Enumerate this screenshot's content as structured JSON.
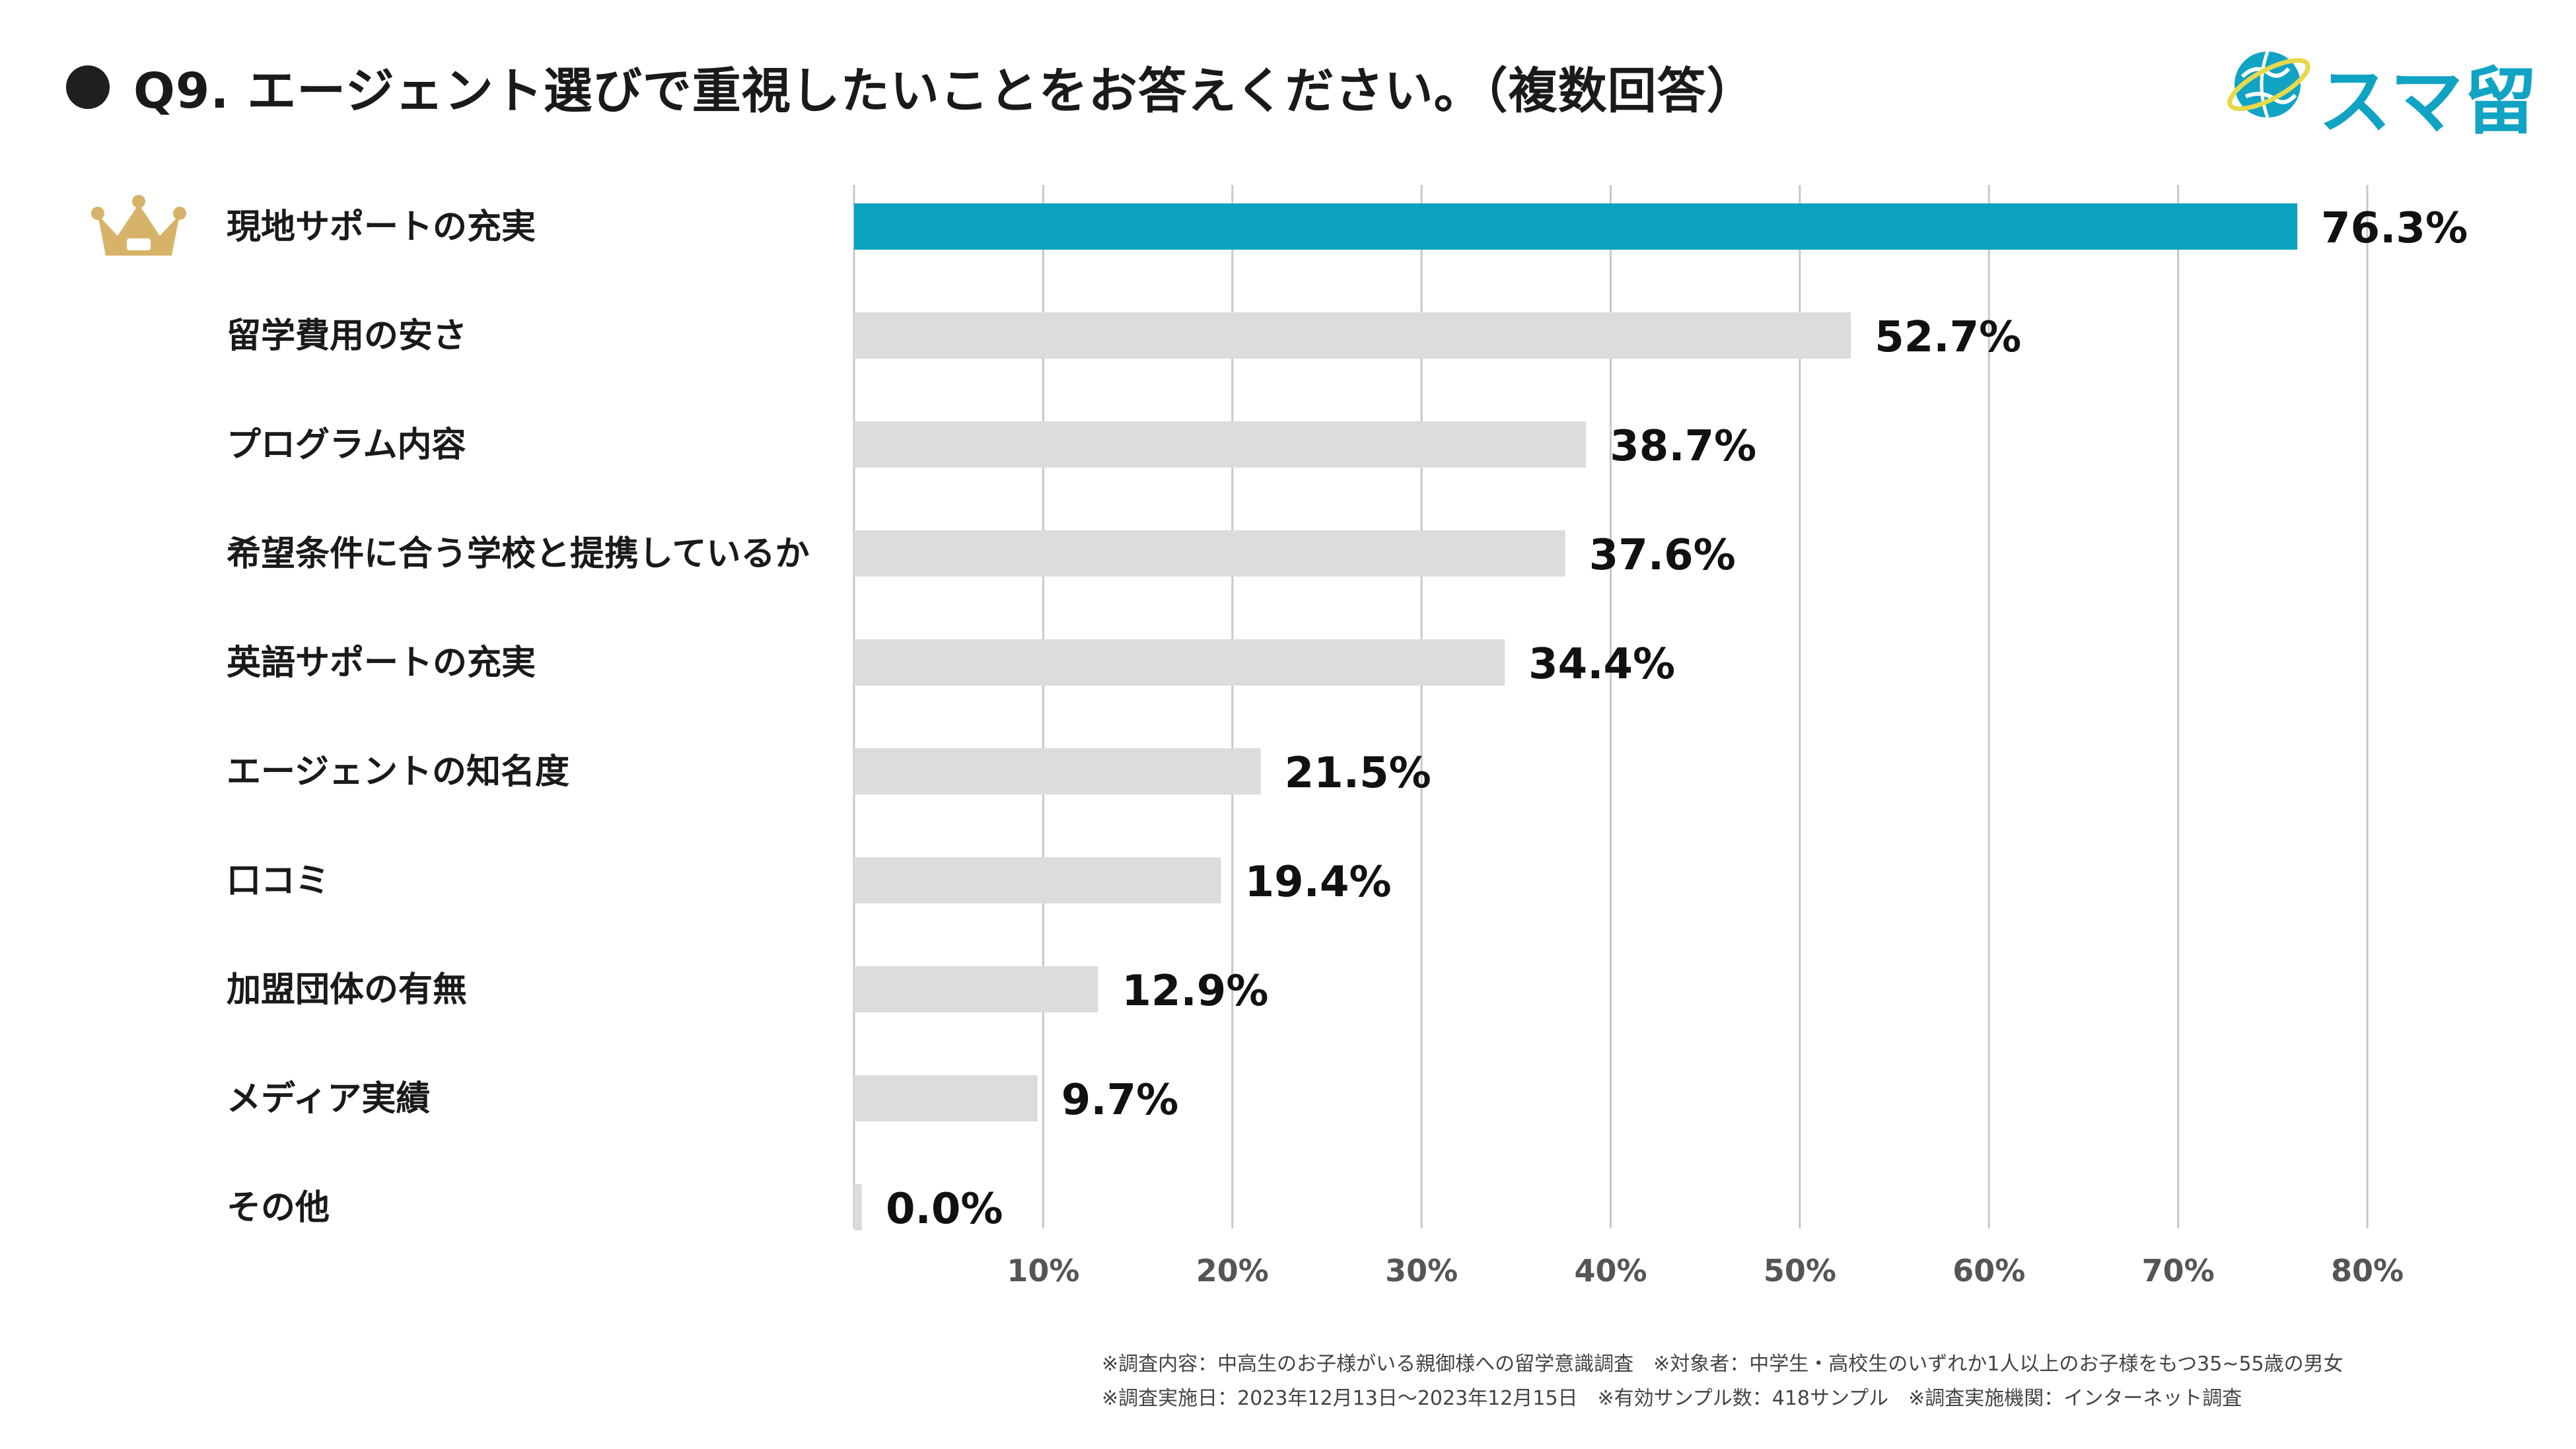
{
  "header": {
    "title": "Q9. エージェント選びで重視したいことをお答えください。（複数回答）",
    "logo_text": "スマ留",
    "logo_icon": "globe-icon",
    "brand_color": "#11a3c4"
  },
  "chart_data": {
    "type": "bar",
    "orientation": "horizontal",
    "categories": [
      "現地サポートの充実",
      "留学費用の安さ",
      "プログラム内容",
      "希望条件に合う学校と提携しているか",
      "英語サポートの充実",
      "エージェントの知名度",
      "口コミ",
      "加盟団体の有無",
      "メディア実績",
      "その他"
    ],
    "values": [
      76.3,
      52.7,
      38.7,
      37.6,
      34.4,
      21.5,
      19.4,
      12.9,
      9.7,
      0.0
    ],
    "value_labels": [
      "76.3%",
      "52.7%",
      "38.7%",
      "37.6%",
      "34.4%",
      "21.5%",
      "19.4%",
      "12.9%",
      "9.7%",
      "0.0%"
    ],
    "x_ticks": [
      10,
      20,
      30,
      40,
      50,
      60,
      70,
      80
    ],
    "x_tick_labels": [
      "10%",
      "20%",
      "30%",
      "40%",
      "50%",
      "60%",
      "70%",
      "80%"
    ],
    "xlim": [
      0,
      80
    ],
    "grid": true,
    "highlight_index": 0,
    "highlight_icon": "crown-icon",
    "colors": {
      "highlight": "#0aa2bf",
      "bar": "#dcdcdc",
      "grid": "#c8c8c8",
      "crown": "#d7b36a"
    }
  },
  "footnotes": {
    "line1": "※調査内容：中高生のお子様がいる親御様への留学意識調査　※対象者：中学生・高校生のいずれか1人以上のお子様をもつ35~55歳の男女",
    "line2": "※調査実施日：2023年12月13日〜2023年12月15日　※有効サンプル数：418サンプル　※調査実施機関：インターネット調査"
  }
}
